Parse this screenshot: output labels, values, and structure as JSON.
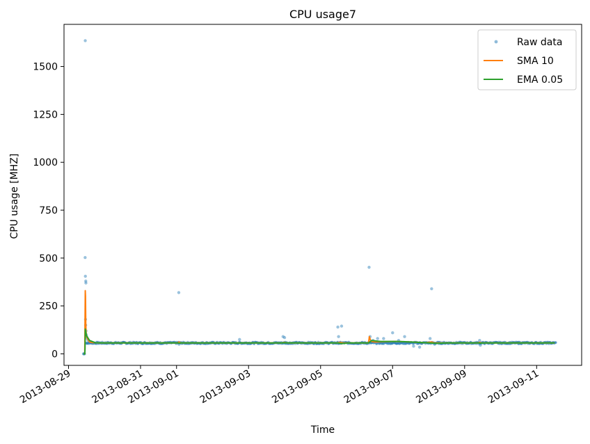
{
  "chart_data": {
    "type": "line",
    "title": "CPU usage7",
    "xlabel": "Time",
    "ylabel": "CPU usage [MHZ]",
    "x_type": "date",
    "xlim": [
      "2013-08-28T21:00",
      "2013-09-12T06:00"
    ],
    "ylim": [
      -60,
      1720
    ],
    "x_ticks": [
      "2013-08-29",
      "2013-08-31",
      "2013-09-01",
      "2013-09-03",
      "2013-09-05",
      "2013-09-07",
      "2013-09-09",
      "2013-09-11"
    ],
    "y_ticks": [
      0,
      250,
      500,
      750,
      1000,
      1250,
      1500
    ],
    "grid": false,
    "legend_position": "top-right",
    "legend": [
      "Raw data",
      "SMA 10",
      "EMA 0.05"
    ],
    "colors": {
      "raw": "#1f77b4",
      "sma": "#ff7f0e",
      "ema": "#2ca02c"
    },
    "series": [
      {
        "name": "Raw data",
        "style": "points",
        "baseline": {
          "value": 57,
          "start": "2013-08-29T11:30",
          "end": "2013-09-11T13:00"
        },
        "points": [
          [
            "2013-08-29T10:00",
            0
          ],
          [
            "2013-08-29T10:20",
            0
          ],
          [
            "2013-08-29T10:40",
            0
          ],
          [
            "2013-08-29T11:10",
            1635
          ],
          [
            "2013-08-29T11:05",
            503
          ],
          [
            "2013-08-29T11:15",
            405
          ],
          [
            "2013-08-29T11:30",
            380
          ],
          [
            "2013-08-29T11:35",
            370
          ],
          [
            "2013-08-29T11:20",
            180
          ],
          [
            "2013-08-29T11:25",
            150
          ],
          [
            "2013-08-29T11:40",
            120
          ],
          [
            "2013-08-29T11:50",
            100
          ],
          [
            "2013-08-29T12:00",
            90
          ],
          [
            "2013-08-29T12:20",
            80
          ],
          [
            "2013-08-29T13:00",
            70
          ],
          [
            "2013-09-01T01:30",
            320
          ],
          [
            "2013-09-01T01:30",
            60
          ],
          [
            "2013-09-01T01:40",
            50
          ],
          [
            "2013-09-02T18:00",
            75
          ],
          [
            "2013-09-03T23:00",
            90
          ],
          [
            "2013-09-04T00:00",
            85
          ],
          [
            "2013-09-04T00:30",
            60
          ],
          [
            "2013-09-05T11:30",
            140
          ],
          [
            "2013-09-05T14:00",
            145
          ],
          [
            "2013-09-05T12:00",
            90
          ],
          [
            "2013-09-05T13:00",
            55
          ],
          [
            "2013-09-06T08:20",
            452
          ],
          [
            "2013-09-06T09:00",
            90
          ],
          [
            "2013-09-06T11:00",
            70
          ],
          [
            "2013-09-06T14:00",
            80
          ],
          [
            "2013-09-06T18:00",
            80
          ],
          [
            "2013-09-07T00:00",
            110
          ],
          [
            "2013-09-07T04:00",
            70
          ],
          [
            "2013-09-07T08:00",
            90
          ],
          [
            "2013-09-07T14:00",
            40
          ],
          [
            "2013-09-07T18:00",
            35
          ],
          [
            "2013-09-08T01:00",
            80
          ],
          [
            "2013-09-08T02:00",
            340
          ],
          [
            "2013-09-08T04:00",
            50
          ],
          [
            "2013-09-09T10:00",
            70
          ],
          [
            "2013-09-09T10:30",
            45
          ],
          [
            "2013-09-10T12:00",
            60
          ]
        ]
      },
      {
        "name": "SMA 10",
        "style": "line",
        "points": [
          [
            "2013-08-29T10:00",
            0
          ],
          [
            "2013-08-29T10:50",
            0
          ],
          [
            "2013-08-29T11:00",
            170
          ],
          [
            "2013-08-29T11:10",
            330
          ],
          [
            "2013-08-29T11:20",
            300
          ],
          [
            "2013-08-29T11:30",
            160
          ],
          [
            "2013-08-29T11:40",
            120
          ],
          [
            "2013-08-29T12:00",
            90
          ],
          [
            "2013-08-29T13:00",
            75
          ],
          [
            "2013-08-29T14:00",
            62
          ],
          [
            "2013-08-29T16:00",
            59
          ],
          [
            "2013-08-29T20:00",
            57
          ],
          [
            "2013-09-01T01:00",
            57
          ],
          [
            "2013-09-01T01:30",
            62
          ],
          [
            "2013-09-01T03:00",
            57
          ],
          [
            "2013-09-03T22:00",
            57
          ],
          [
            "2013-09-04T00:00",
            60
          ],
          [
            "2013-09-04T02:00",
            57
          ],
          [
            "2013-09-05T11:00",
            57
          ],
          [
            "2013-09-05T13:00",
            60
          ],
          [
            "2013-09-05T15:00",
            57
          ],
          [
            "2013-09-06T08:00",
            57
          ],
          [
            "2013-09-06T08:30",
            90
          ],
          [
            "2013-09-06T09:30",
            65
          ],
          [
            "2013-09-06T12:00",
            62
          ],
          [
            "2013-09-07T02:00",
            65
          ],
          [
            "2013-09-07T12:00",
            62
          ],
          [
            "2013-09-07T22:00",
            58
          ],
          [
            "2013-09-08T02:00",
            62
          ],
          [
            "2013-09-08T04:00",
            57
          ],
          [
            "2013-09-09T09:00",
            57
          ],
          [
            "2013-09-09T10:00",
            60
          ],
          [
            "2013-09-09T11:00",
            57
          ],
          [
            "2013-09-11T12:00",
            57
          ]
        ]
      },
      {
        "name": "EMA 0.05",
        "style": "line",
        "points": [
          [
            "2013-08-29T10:00",
            0
          ],
          [
            "2013-08-29T10:50",
            0
          ],
          [
            "2013-08-29T11:00",
            25
          ],
          [
            "2013-08-29T11:10",
            130
          ],
          [
            "2013-08-29T11:30",
            115
          ],
          [
            "2013-08-29T12:00",
            95
          ],
          [
            "2013-08-29T14:00",
            70
          ],
          [
            "2013-08-29T18:00",
            58
          ],
          [
            "2013-08-30T00:00",
            57
          ],
          [
            "2013-09-01T01:00",
            57
          ],
          [
            "2013-09-01T01:30",
            55
          ],
          [
            "2013-09-01T03:00",
            57
          ],
          [
            "2013-09-03T22:00",
            57
          ],
          [
            "2013-09-04T00:00",
            58
          ],
          [
            "2013-09-04T06:00",
            57
          ],
          [
            "2013-09-05T11:00",
            57
          ],
          [
            "2013-09-05T14:00",
            54
          ],
          [
            "2013-09-05T20:00",
            57
          ],
          [
            "2013-09-06T08:00",
            57
          ],
          [
            "2013-09-06T10:00",
            70
          ],
          [
            "2013-09-06T16:00",
            65
          ],
          [
            "2013-09-07T04:00",
            65
          ],
          [
            "2013-09-07T12:00",
            62
          ],
          [
            "2013-09-07T22:00",
            58
          ],
          [
            "2013-09-08T06:00",
            55
          ],
          [
            "2013-09-08T12:00",
            57
          ],
          [
            "2013-09-09T09:00",
            57
          ],
          [
            "2013-09-09T10:30",
            56
          ],
          [
            "2013-09-09T14:00",
            57
          ],
          [
            "2013-09-11T12:00",
            57
          ]
        ]
      }
    ]
  }
}
